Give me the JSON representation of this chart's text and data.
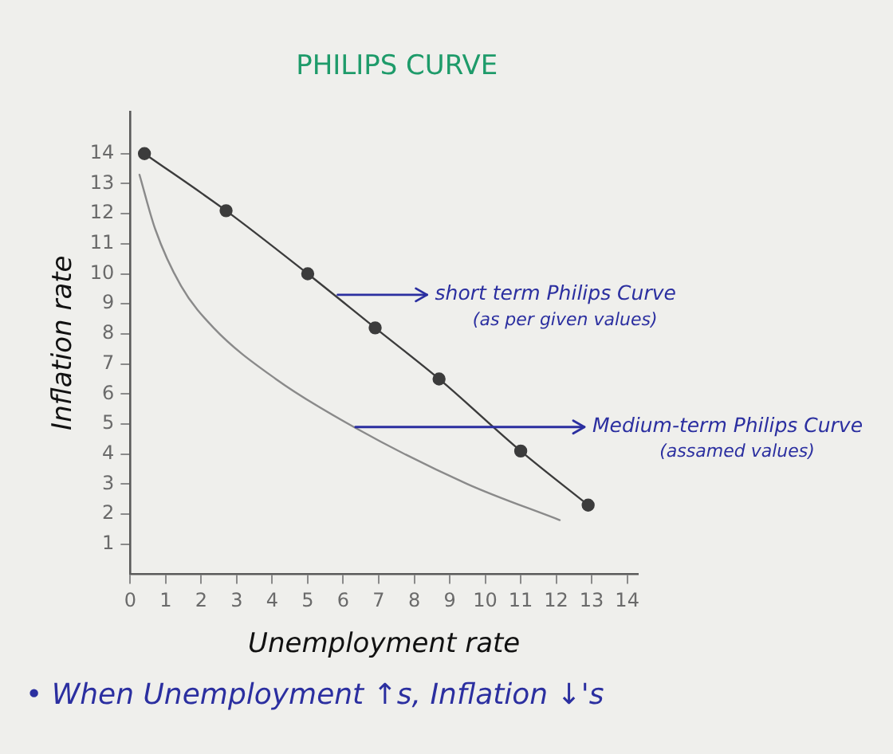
{
  "chart_data": {
    "type": "line",
    "title": "PHILIPS CURVE",
    "xlabel": "Unemployment rate",
    "ylabel": "Inflation rate",
    "xlim": [
      0,
      14.3
    ],
    "ylim": [
      0,
      15.4
    ],
    "xticks": [
      0,
      1,
      2,
      3,
      4,
      5,
      6,
      7,
      8,
      9,
      10,
      11,
      12,
      13,
      14
    ],
    "yticks": [
      1,
      2,
      3,
      4,
      5,
      6,
      7,
      8,
      9,
      10,
      11,
      12,
      13,
      14
    ],
    "series": [
      {
        "color": "#3c3c3c",
        "marker": "circle",
        "x": [
          0.4,
          2.7,
          5,
          6.9,
          8.7,
          11,
          12.9
        ],
        "values": [
          14,
          12.1,
          10,
          8.2,
          6.5,
          4.1,
          2.3
        ]
      },
      {
        "color": "#8a8a8a",
        "marker": "none",
        "x": [
          0.26,
          0.7,
          1.43,
          2.35,
          4.1,
          6.3,
          9.5,
          12.1
        ],
        "values": [
          13.3,
          11.5,
          9.6,
          8.2,
          6.5,
          4.9,
          3,
          1.8
        ]
      }
    ],
    "annotations": [
      {
        "text": "short term Philips Curve\n(as per given values)",
        "x": 5.8,
        "y": 9.3
      },
      {
        "text": "Medium-term Philips Curve\n(assamed values)",
        "x": 6.3,
        "y": 4.9
      },
      "• When Unemployment ↑s, Inflation ↓'s"
    ]
  }
}
